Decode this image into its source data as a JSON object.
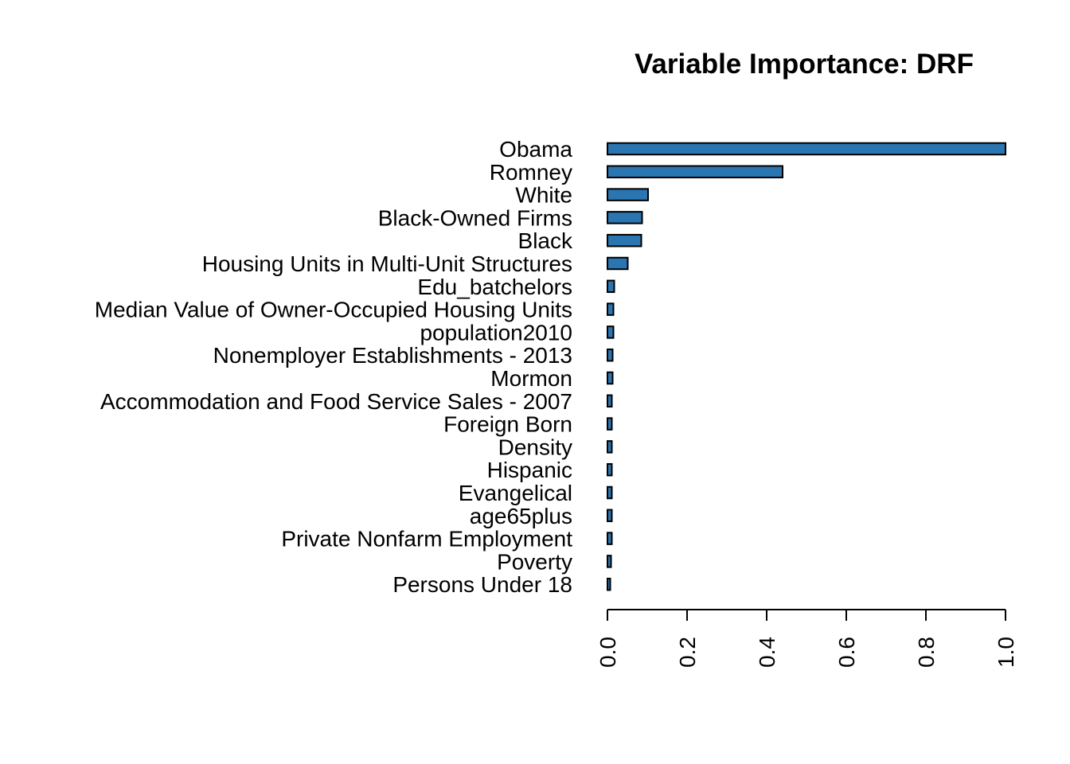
{
  "chart_data": {
    "type": "bar",
    "orientation": "horizontal",
    "title": "Variable Importance: DRF",
    "xlabel": "",
    "ylabel": "",
    "xlim": [
      0,
      1
    ],
    "x_ticks": [
      "0.0",
      "0.2",
      "0.4",
      "0.6",
      "0.8",
      "1.0"
    ],
    "bar_color": "#2B75B1",
    "categories": [
      "Obama",
      "Romney",
      "White",
      "Black-Owned Firms",
      "Black",
      "Housing Units in Multi-Unit Structures",
      "Edu_batchelors",
      "Median Value of Owner-Occupied Housing Units",
      "population2010",
      "Nonemployer Establishments - 2013",
      "Mormon",
      "Accommodation and Food Service Sales - 2007",
      "Foreign Born",
      "Density",
      "Hispanic",
      "Evangelical",
      "age65plus",
      "Private Nonfarm Employment",
      "Poverty",
      "Persons Under 18"
    ],
    "values": [
      1.0,
      0.44,
      0.102,
      0.087,
      0.085,
      0.051,
      0.017,
      0.015,
      0.015,
      0.013,
      0.013,
      0.011,
      0.011,
      0.011,
      0.011,
      0.011,
      0.011,
      0.011,
      0.009,
      0.007
    ]
  }
}
